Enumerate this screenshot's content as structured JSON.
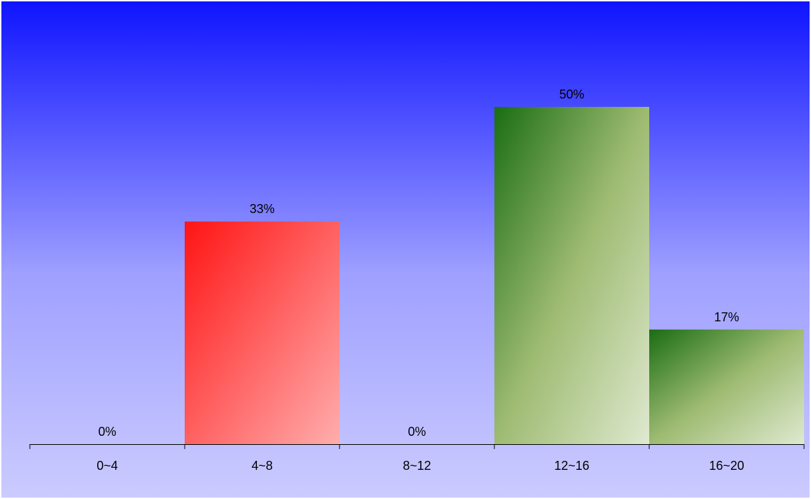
{
  "chart_data": {
    "type": "bar",
    "title": "",
    "xlabel": "",
    "ylabel": "",
    "categories": [
      "0~4",
      "4~8",
      "8~12",
      "12~16",
      "16~20"
    ],
    "values": [
      0,
      33,
      0,
      50,
      17
    ],
    "data_labels": [
      "0%",
      "33%",
      "0%",
      "50%",
      "17%"
    ],
    "ylim": [
      0,
      50
    ],
    "grid": false,
    "legend": "none",
    "colors": {
      "background_top": "#0f14ff",
      "background_bottom": "#cbcbff",
      "bar_red_start": "#ff1414",
      "bar_red_end": "#ffadad",
      "bar_green_start": "#1a6d14",
      "bar_green_mid": "#9ebb72",
      "bar_green_end": "#dfe9d0"
    },
    "bar_colors": [
      "red",
      "red",
      "red",
      "green",
      "green"
    ]
  }
}
